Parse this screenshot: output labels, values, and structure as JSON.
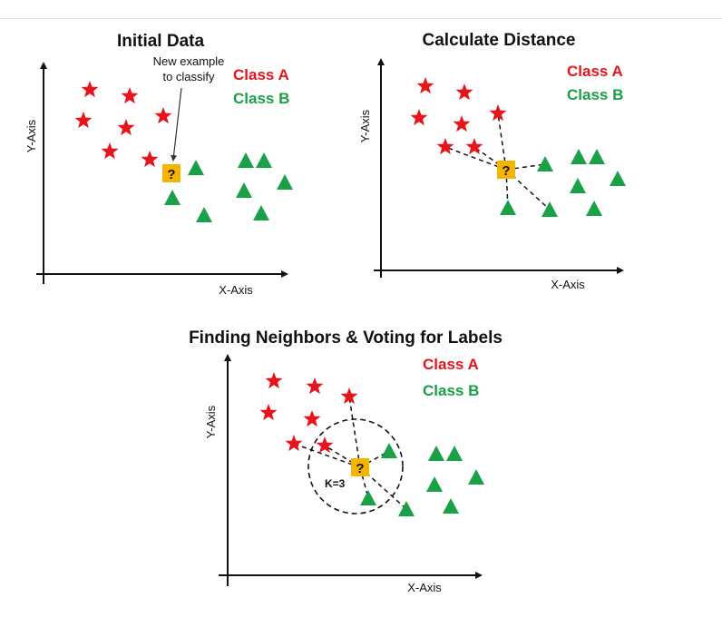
{
  "legend": {
    "class_a": "Class A",
    "class_b": "Class B"
  },
  "colors": {
    "class_a": "#e8141b",
    "class_b": "#1aa046",
    "query": "#f5b400",
    "axis": "#111111"
  },
  "axes": {
    "x_label": "X-Axis",
    "y_label": "Y-Axis"
  },
  "panels": {
    "initial": {
      "title": "Initial Data",
      "annotation": [
        "New example",
        "to classify"
      ],
      "query_symbol": "?"
    },
    "distance": {
      "title": "Calculate Distance",
      "query_symbol": "?"
    },
    "voting": {
      "title": "Finding Neighbors & Voting for Labels",
      "k_label": "K=3",
      "query_symbol": "?"
    }
  },
  "icons": {
    "class_a_marker": "star",
    "class_b_marker": "triangle",
    "query_marker": "question-box"
  }
}
